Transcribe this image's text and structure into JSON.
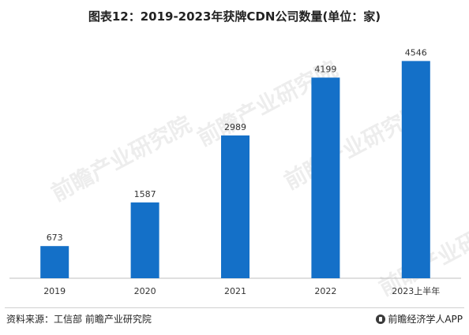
{
  "title": "图表12：2019-2023年获牌CDN公司数量(单位：家)",
  "chart_data": {
    "type": "bar",
    "categories": [
      "2019",
      "2020",
      "2021",
      "2022",
      "2023上半年"
    ],
    "values": [
      673,
      1587,
      2989,
      4199,
      4546
    ],
    "title": "图表12：2019-2023年获牌CDN公司数量(单位：家)",
    "xlabel": "",
    "ylabel": "",
    "ylim": [
      0,
      4800
    ],
    "grid": false,
    "legend": "none",
    "bar_color": "#1470c8",
    "data_labels": true
  },
  "watermark": "前瞻产业研究院",
  "footer": {
    "source": "资料来源：工信部 前瞻产业研究院",
    "brand": "前瞻经济学人APP",
    "brand_icon": "qianzhan-logo-icon"
  }
}
